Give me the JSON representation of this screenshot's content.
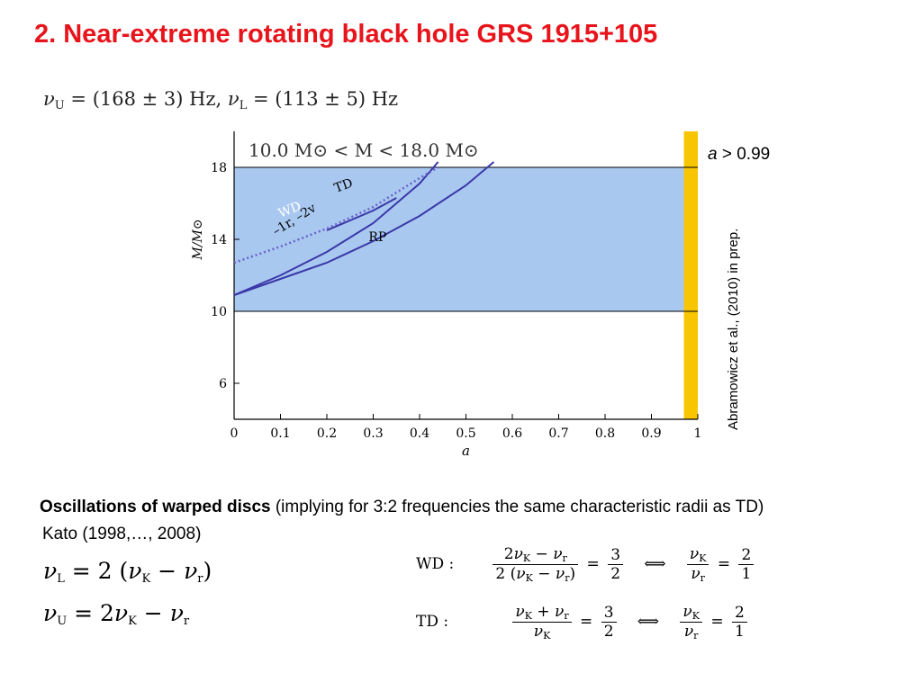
{
  "slide": {
    "title": "2. Near-extreme rotating black hole GRS 1915+105",
    "frequencies": {
      "nu_U": "(168 ± 3) Hz,",
      "nu_L": "(113 ± 5) Hz"
    },
    "spin_note": {
      "symbol": "a",
      "rest": " > 0.99"
    },
    "citation": "Abramowicz et al., (2010) in prep.",
    "oscillation_heading": "Oscillations of warped discs",
    "oscillation_text": " (implying for 3:2 frequencies the same characteristic radii as TD)",
    "kato": "Kato (1998,…, 2008)",
    "eq_labels": {
      "wd": "WD :",
      "td": "TD :"
    },
    "constants": {
      "two": "2",
      "three": "3",
      "one": "1"
    }
  },
  "colors": {
    "title": "#e8141b",
    "mass_band": "#a9c8f0",
    "spin_band": "#f7c600",
    "curves": "#3a37a8",
    "wd_curve": "#6a63c8"
  },
  "chart_data": {
    "type": "line",
    "title": "10.0 M⊙ < M < 18.0 M⊙",
    "xlabel": "a",
    "ylabel": "M/M⊙",
    "xlim": [
      0,
      1
    ],
    "ylim": [
      4,
      20
    ],
    "xticks": [
      "0",
      "0.1",
      "0.2",
      "0.3",
      "0.4",
      "0.5",
      "0.6",
      "0.7",
      "0.8",
      "0.9",
      "1"
    ],
    "yticks": [
      "6",
      "10",
      "14",
      "18"
    ],
    "mass_band": [
      10,
      18
    ],
    "spin_band": [
      0.97,
      1.0
    ],
    "series": [
      {
        "name": "RP",
        "style": "solid",
        "x": [
          0,
          0.1,
          0.2,
          0.3,
          0.4,
          0.5,
          0.56
        ],
        "y": [
          10.9,
          11.8,
          12.7,
          13.9,
          15.3,
          17.0,
          18.3
        ]
      },
      {
        "name": "–1r, –2v",
        "style": "solid",
        "x": [
          0,
          0.1,
          0.2,
          0.3,
          0.4,
          0.44
        ],
        "y": [
          10.9,
          12.0,
          13.3,
          14.9,
          17.1,
          18.3
        ]
      },
      {
        "name": "TD",
        "style": "solid",
        "x": [
          0.2,
          0.3,
          0.35
        ],
        "y": [
          14.5,
          15.6,
          16.3
        ]
      },
      {
        "name": "WD",
        "style": "dotted",
        "x": [
          0,
          0.1,
          0.2,
          0.3,
          0.4,
          0.44
        ],
        "y": [
          12.7,
          13.6,
          14.6,
          15.8,
          17.4,
          18.0
        ]
      }
    ]
  }
}
